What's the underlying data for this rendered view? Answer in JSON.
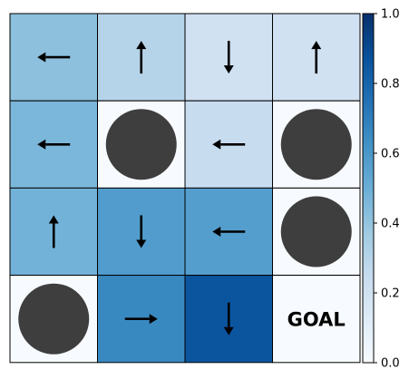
{
  "chart_data": {
    "type": "heatmap",
    "title": "",
    "rows": 4,
    "cols": 4,
    "cells": [
      [
        {
          "kind": "arrow",
          "dir": "left",
          "value": 0.42
        },
        {
          "kind": "arrow",
          "dir": "up",
          "value": 0.3
        },
        {
          "kind": "arrow",
          "dir": "down",
          "value": 0.2
        },
        {
          "kind": "arrow",
          "dir": "up",
          "value": 0.2
        }
      ],
      [
        {
          "kind": "arrow",
          "dir": "left",
          "value": 0.46
        },
        {
          "kind": "hole",
          "value": 0.0
        },
        {
          "kind": "arrow",
          "dir": "left",
          "value": 0.24
        },
        {
          "kind": "hole",
          "value": 0.0
        }
      ],
      [
        {
          "kind": "arrow",
          "dir": "up",
          "value": 0.48
        },
        {
          "kind": "arrow",
          "dir": "down",
          "value": 0.58
        },
        {
          "kind": "arrow",
          "dir": "left",
          "value": 0.57
        },
        {
          "kind": "hole",
          "value": 0.0
        }
      ],
      [
        {
          "kind": "hole",
          "value": 0.0
        },
        {
          "kind": "arrow",
          "dir": "right",
          "value": 0.66
        },
        {
          "kind": "arrow",
          "dir": "down",
          "value": 0.86
        },
        {
          "kind": "goal",
          "value": 0.0,
          "label": "GOAL"
        }
      ]
    ],
    "colorbar": {
      "min": 0.0,
      "max": 1.0,
      "ticks": [
        "0.0",
        "0.2",
        "0.4",
        "0.6",
        "0.8",
        "1.0"
      ],
      "colormap": "Blues"
    },
    "hole_color": "#3e3e3e"
  }
}
